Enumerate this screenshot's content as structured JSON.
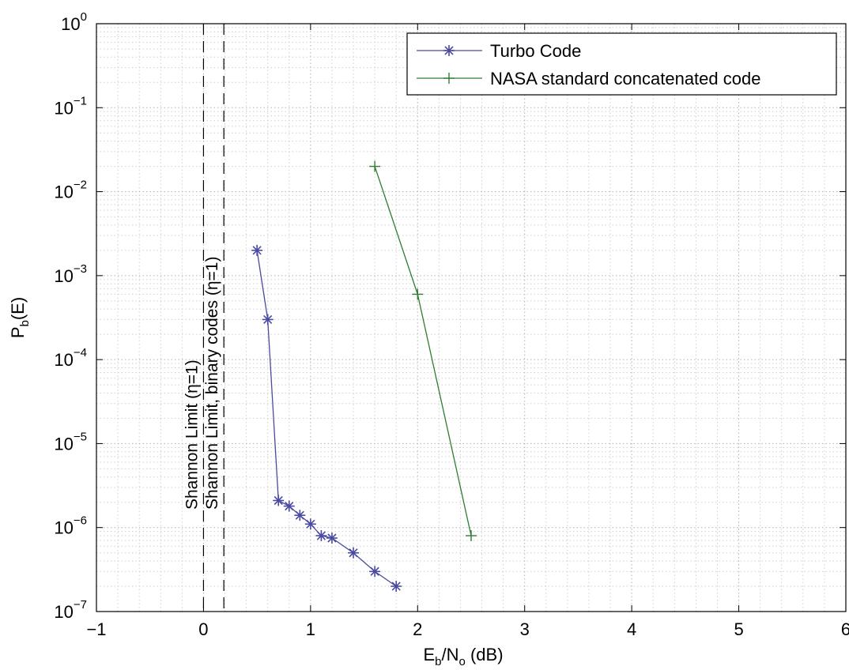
{
  "chart_data": {
    "type": "line",
    "xlabel": {
      "base": "E",
      "sub1": "b",
      "mid": "/N",
      "sub2": "o",
      "tail": " (dB)"
    },
    "ylabel": {
      "base": "P",
      "sub": "b",
      "tail": "(E)"
    },
    "xlim": [
      -1,
      6
    ],
    "ylim": [
      1e-07,
      1
    ],
    "yscale": "log",
    "grid": true,
    "legend_position": "top-right",
    "x_ticks": [
      "−1",
      "0",
      "1",
      "2",
      "3",
      "4",
      "5",
      "6"
    ],
    "y_ticks": [
      {
        "base": "10",
        "exp": "0"
      },
      {
        "base": "10",
        "exp": "−1"
      },
      {
        "base": "10",
        "exp": "−2"
      },
      {
        "base": "10",
        "exp": "−3"
      },
      {
        "base": "10",
        "exp": "−4"
      },
      {
        "base": "10",
        "exp": "−5"
      },
      {
        "base": "10",
        "exp": "−6"
      },
      {
        "base": "10",
        "exp": "−7"
      }
    ],
    "series": [
      {
        "name": "Turbo Code",
        "color": "#4a4aa0",
        "marker": "asterisk",
        "x": [
          0.5,
          0.6,
          0.7,
          0.8,
          0.9,
          1.0,
          1.1,
          1.2,
          1.4,
          1.6,
          1.8
        ],
        "y": [
          0.002,
          0.0003,
          2.1e-06,
          1.8e-06,
          1.4e-06,
          1.1e-06,
          8e-07,
          7.5e-07,
          5e-07,
          3e-07,
          2e-07
        ]
      },
      {
        "name": "NASA standard concatenated code",
        "color": "#2e7d32",
        "marker": "plus",
        "x": [
          1.6,
          2.0,
          2.5
        ],
        "y": [
          0.02,
          0.0006,
          8e-07
        ]
      }
    ],
    "reference_lines": [
      {
        "x": 0.0,
        "label": "Shannon Limit (η=1)"
      },
      {
        "x": 0.19,
        "label": "Shannon Limit, binary codes (η=1)"
      }
    ]
  }
}
